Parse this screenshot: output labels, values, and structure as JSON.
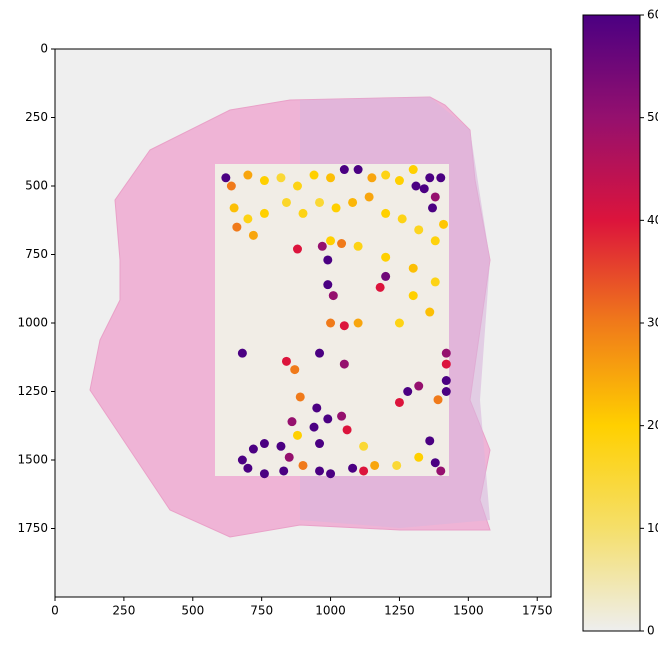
{
  "chart_data": {
    "type": "scatter",
    "xlim": [
      0,
      1800
    ],
    "xticks": [
      0,
      250,
      500,
      750,
      1000,
      1250,
      1500,
      1750
    ],
    "ylim": [
      2000,
      0
    ],
    "yticks": [
      0,
      250,
      500,
      750,
      1000,
      1250,
      1500,
      1750
    ],
    "clim": [
      0,
      600
    ],
    "cticks": [
      0,
      100,
      200,
      300,
      400,
      500,
      600
    ],
    "colormap": [
      "#eeeeee",
      "#f5df6a",
      "#ffd000",
      "#f07a1a",
      "#dc143c",
      "#95106e",
      "#4b0082"
    ],
    "x": [
      620,
      640,
      700,
      760,
      820,
      880,
      940,
      1000,
      1050,
      1100,
      1150,
      1200,
      1250,
      1300,
      1360,
      1400,
      1340,
      1380,
      1370,
      1310,
      650,
      700,
      760,
      840,
      900,
      960,
      1020,
      1080,
      1140,
      1200,
      1260,
      1320,
      1380,
      1410,
      660,
      720,
      1000,
      1100,
      1200,
      1300,
      1380,
      1300,
      1360,
      1250,
      880,
      970,
      990,
      1200,
      1180,
      1040,
      990,
      1010,
      1000,
      1050,
      1100,
      680,
      840,
      870,
      960,
      1050,
      1420,
      1420,
      1420,
      1280,
      1320,
      1250,
      1390,
      1420,
      890,
      950,
      990,
      940,
      960,
      1040,
      1060,
      860,
      880,
      720,
      760,
      820,
      850,
      830,
      760,
      700,
      680,
      900,
      960,
      1000,
      1080,
      1120,
      1160,
      1240,
      1320,
      1380,
      1360,
      1400,
      1120
    ],
    "y": [
      470,
      500,
      460,
      480,
      470,
      500,
      460,
      470,
      440,
      440,
      470,
      460,
      480,
      440,
      470,
      470,
      510,
      540,
      580,
      500,
      580,
      620,
      600,
      560,
      600,
      560,
      580,
      560,
      540,
      600,
      620,
      660,
      700,
      640,
      650,
      680,
      700,
      720,
      760,
      800,
      850,
      900,
      960,
      1000,
      730,
      720,
      770,
      830,
      870,
      710,
      860,
      900,
      1000,
      1010,
      1000,
      1110,
      1140,
      1170,
      1110,
      1150,
      1110,
      1150,
      1210,
      1250,
      1230,
      1290,
      1280,
      1250,
      1270,
      1310,
      1350,
      1380,
      1440,
      1340,
      1390,
      1360,
      1410,
      1460,
      1440,
      1450,
      1490,
      1540,
      1550,
      1530,
      1500,
      1520,
      1540,
      1550,
      1530,
      1540,
      1520,
      1520,
      1490,
      1510,
      1430,
      1540,
      1450
    ],
    "values": [
      600,
      300,
      250,
      200,
      150,
      180,
      200,
      220,
      600,
      600,
      250,
      180,
      200,
      200,
      600,
      600,
      600,
      500,
      600,
      600,
      220,
      180,
      200,
      160,
      180,
      150,
      200,
      230,
      250,
      200,
      180,
      170,
      190,
      210,
      300,
      250,
      200,
      180,
      200,
      220,
      180,
      200,
      220,
      180,
      400,
      500,
      600,
      550,
      400,
      300,
      600,
      500,
      300,
      400,
      250,
      600,
      400,
      300,
      600,
      500,
      500,
      400,
      600,
      600,
      500,
      400,
      300,
      600,
      300,
      600,
      600,
      600,
      600,
      500,
      400,
      500,
      200,
      600,
      600,
      600,
      500,
      600,
      600,
      600,
      600,
      300,
      600,
      600,
      600,
      400,
      250,
      150,
      200,
      600,
      600,
      500,
      150
    ]
  }
}
